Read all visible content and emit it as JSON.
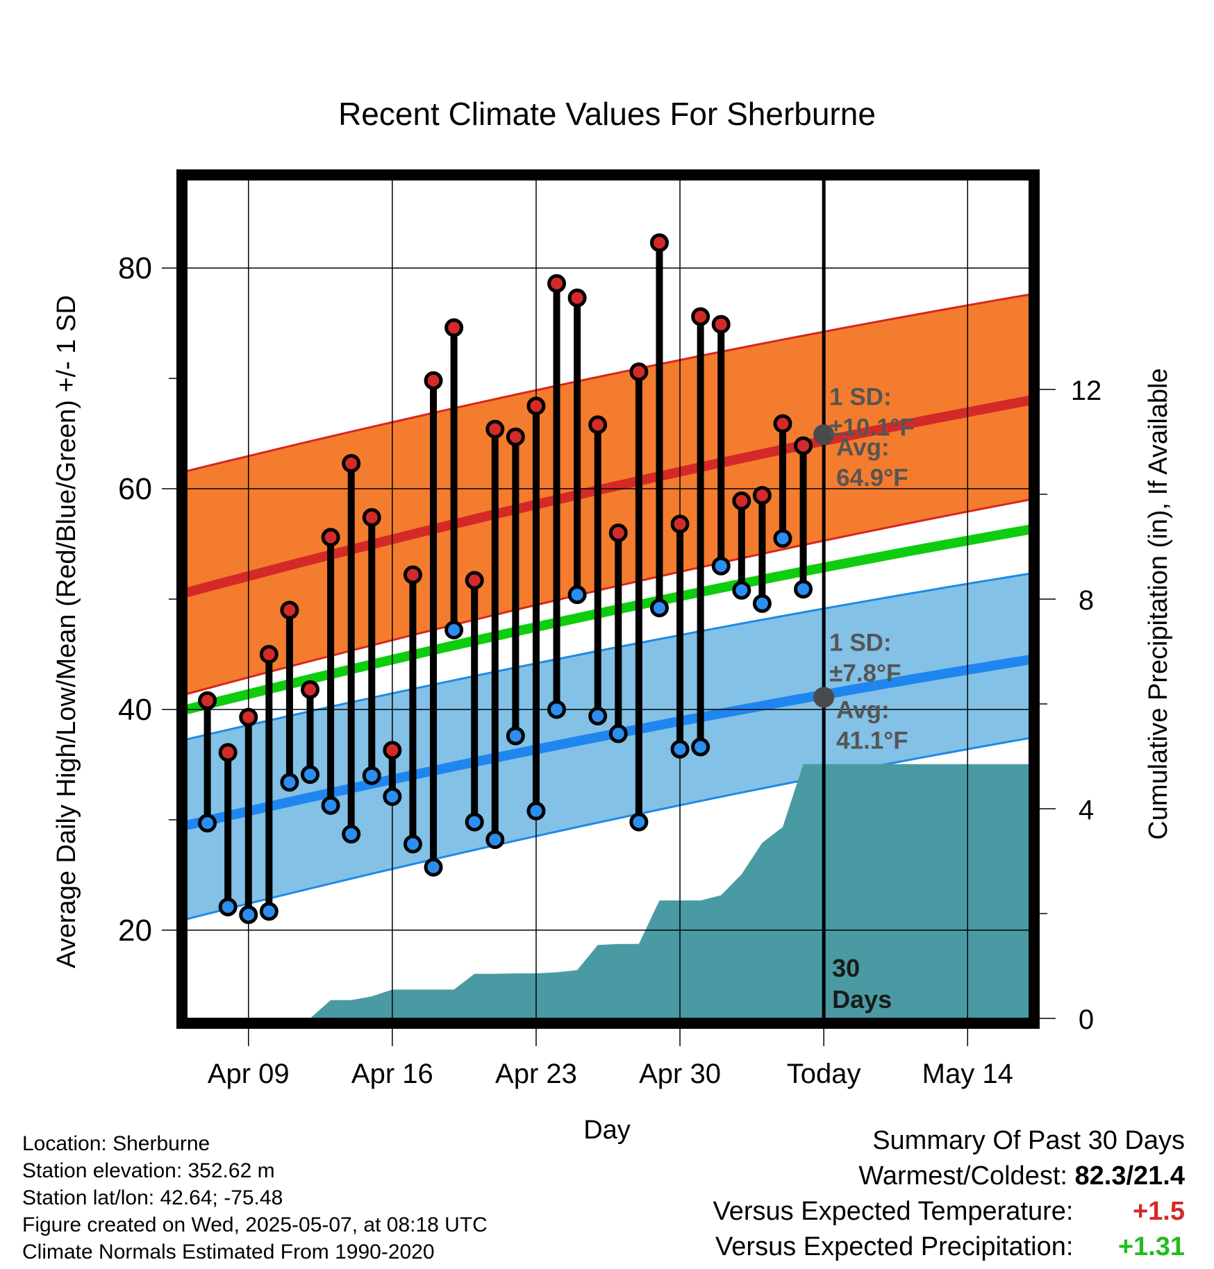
{
  "chart_data": {
    "type": "line",
    "title": "Recent Climate Values For Sherburne",
    "xlabel": "Day",
    "ylabel": "Average Daily High/Low/Mean (Red/Blue/Green) +/- 1 SD",
    "y2label": "Cumulative Precipitation (in), If Available",
    "ylim": [
      12,
      88
    ],
    "y2lim": [
      0,
      16
    ],
    "x_range": [
      "2025-04-06",
      "2025-05-17"
    ],
    "yticks": [
      20,
      40,
      60,
      80
    ],
    "y2ticks": [
      0,
      4,
      8,
      12
    ],
    "x_tick_labels": [
      {
        "date": "2025-04-09",
        "label": "Apr 09"
      },
      {
        "date": "2025-04-16",
        "label": "Apr 16"
      },
      {
        "date": "2025-04-23",
        "label": "Apr 23"
      },
      {
        "date": "2025-04-30",
        "label": "Apr 30"
      },
      {
        "date": "2025-05-07",
        "label": "Today"
      },
      {
        "date": "2025-05-14",
        "label": "May 14"
      }
    ],
    "grid": true,
    "today_date": "2025-05-07",
    "today_label": "30 Days",
    "normals": {
      "dates": [
        "2025-04-06",
        "2025-05-17"
      ],
      "high_avg": [
        50.6,
        68.0
      ],
      "high_upper": [
        61.6,
        77.6
      ],
      "high_lower": [
        41.4,
        59.0
      ],
      "low_avg": [
        29.5,
        44.5
      ],
      "low_upper": [
        37.3,
        52.3
      ],
      "low_lower": [
        21.0,
        37.4
      ],
      "mean": [
        40.0,
        56.3
      ]
    },
    "high_annotation": {
      "sd_label": "1 SD:",
      "sd_value": "±10.1°F",
      "avg_label": "Avg:",
      "avg_value": "64.9°F",
      "avg": 64.9
    },
    "low_annotation": {
      "sd_label": "1 SD:",
      "sd_value": "±7.8°F",
      "avg_label": "Avg:",
      "avg_value": "41.1°F",
      "avg": 41.1
    },
    "series": [
      {
        "name": "High",
        "dates": [
          "2025-04-07",
          "2025-04-08",
          "2025-04-09",
          "2025-04-10",
          "2025-04-11",
          "2025-04-12",
          "2025-04-13",
          "2025-04-14",
          "2025-04-15",
          "2025-04-16",
          "2025-04-17",
          "2025-04-18",
          "2025-04-19",
          "2025-04-20",
          "2025-04-21",
          "2025-04-22",
          "2025-04-23",
          "2025-04-24",
          "2025-04-25",
          "2025-04-26",
          "2025-04-27",
          "2025-04-28",
          "2025-04-29",
          "2025-04-30",
          "2025-05-01",
          "2025-05-02",
          "2025-05-03",
          "2025-05-04",
          "2025-05-05",
          "2025-05-06"
        ],
        "values": [
          40.8,
          36.1,
          39.3,
          45.0,
          49.0,
          41.8,
          55.6,
          62.3,
          57.4,
          36.3,
          52.2,
          69.8,
          74.6,
          51.7,
          65.4,
          64.7,
          67.5,
          78.6,
          77.3,
          65.8,
          56.0,
          70.6,
          82.3,
          56.8,
          75.6,
          74.9,
          58.9,
          59.4,
          65.9,
          63.9
        ]
      },
      {
        "name": "Low",
        "dates": [
          "2025-04-07",
          "2025-04-08",
          "2025-04-09",
          "2025-04-10",
          "2025-04-11",
          "2025-04-12",
          "2025-04-13",
          "2025-04-14",
          "2025-04-15",
          "2025-04-16",
          "2025-04-17",
          "2025-04-18",
          "2025-04-19",
          "2025-04-20",
          "2025-04-21",
          "2025-04-22",
          "2025-04-23",
          "2025-04-24",
          "2025-04-25",
          "2025-04-26",
          "2025-04-27",
          "2025-04-28",
          "2025-04-29",
          "2025-04-30",
          "2025-05-01",
          "2025-05-02",
          "2025-05-03",
          "2025-05-04",
          "2025-05-05",
          "2025-05-06"
        ],
        "values": [
          29.7,
          22.1,
          21.4,
          21.7,
          33.4,
          34.1,
          31.3,
          28.7,
          34.0,
          32.1,
          27.8,
          25.7,
          47.2,
          29.8,
          28.2,
          37.6,
          30.8,
          40.0,
          50.4,
          39.4,
          37.8,
          29.8,
          49.2,
          36.4,
          36.6,
          53.0,
          50.8,
          49.6,
          55.5,
          50.9
        ]
      }
    ],
    "precip_cumulative": {
      "dates": [
        "2025-04-08",
        "2025-04-09",
        "2025-04-10",
        "2025-04-11",
        "2025-04-12",
        "2025-04-13",
        "2025-04-14",
        "2025-04-15",
        "2025-04-16",
        "2025-04-17",
        "2025-04-18",
        "2025-04-19",
        "2025-04-20",
        "2025-04-21",
        "2025-04-22",
        "2025-04-23",
        "2025-04-24",
        "2025-04-25",
        "2025-04-26",
        "2025-04-27",
        "2025-04-28",
        "2025-04-29",
        "2025-04-30",
        "2025-05-01",
        "2025-05-02",
        "2025-05-03",
        "2025-05-04",
        "2025-05-05",
        "2025-05-06",
        "2025-05-07"
      ],
      "values": [
        0,
        0,
        0,
        0,
        0,
        0.35,
        0.35,
        0.42,
        0.55,
        0.55,
        0.55,
        0.55,
        0.85,
        0.85,
        0.86,
        0.86,
        0.88,
        0.92,
        1.4,
        1.42,
        1.42,
        2.25,
        2.25,
        2.25,
        2.35,
        2.75,
        3.35,
        3.65,
        4.85,
        4.85
      ],
      "extend_to": "2025-05-17"
    },
    "colors": {
      "high_band": "#f47c2e",
      "high_edge": "#d7261e",
      "high_avg": "#d42a27",
      "low_band": "#83c1e6",
      "low_edge": "#1f8ae6",
      "low_avg": "#1f86f0",
      "mean": "#0ecc0e",
      "precip": "#4a9aa3",
      "high_marker": "#d32a2a",
      "low_marker": "#2b8ef0",
      "annotation": "#555555",
      "avg_dot": "#4a4a4a"
    }
  },
  "footer": {
    "location": "Location: Sherburne",
    "elevation": "Station elevation: 352.62 m",
    "latlon": "Station lat/lon: 42.64; -75.48",
    "created": "Figure created on Wed, 2025-05-07, at 08:18 UTC",
    "normals": "Climate Normals Estimated From 1990-2020"
  },
  "summary": {
    "title": "Summary Of Past 30 Days",
    "warm_cold_label": "Warmest/Coldest:",
    "warm_cold_value": "82.3/21.4",
    "temp_label": "Versus Expected Temperature:",
    "temp_value": "+1.5",
    "temp_color": "#d42a27",
    "precip_label": "Versus Expected Precipitation:",
    "precip_value": "+1.31",
    "precip_color": "#22bb22"
  }
}
